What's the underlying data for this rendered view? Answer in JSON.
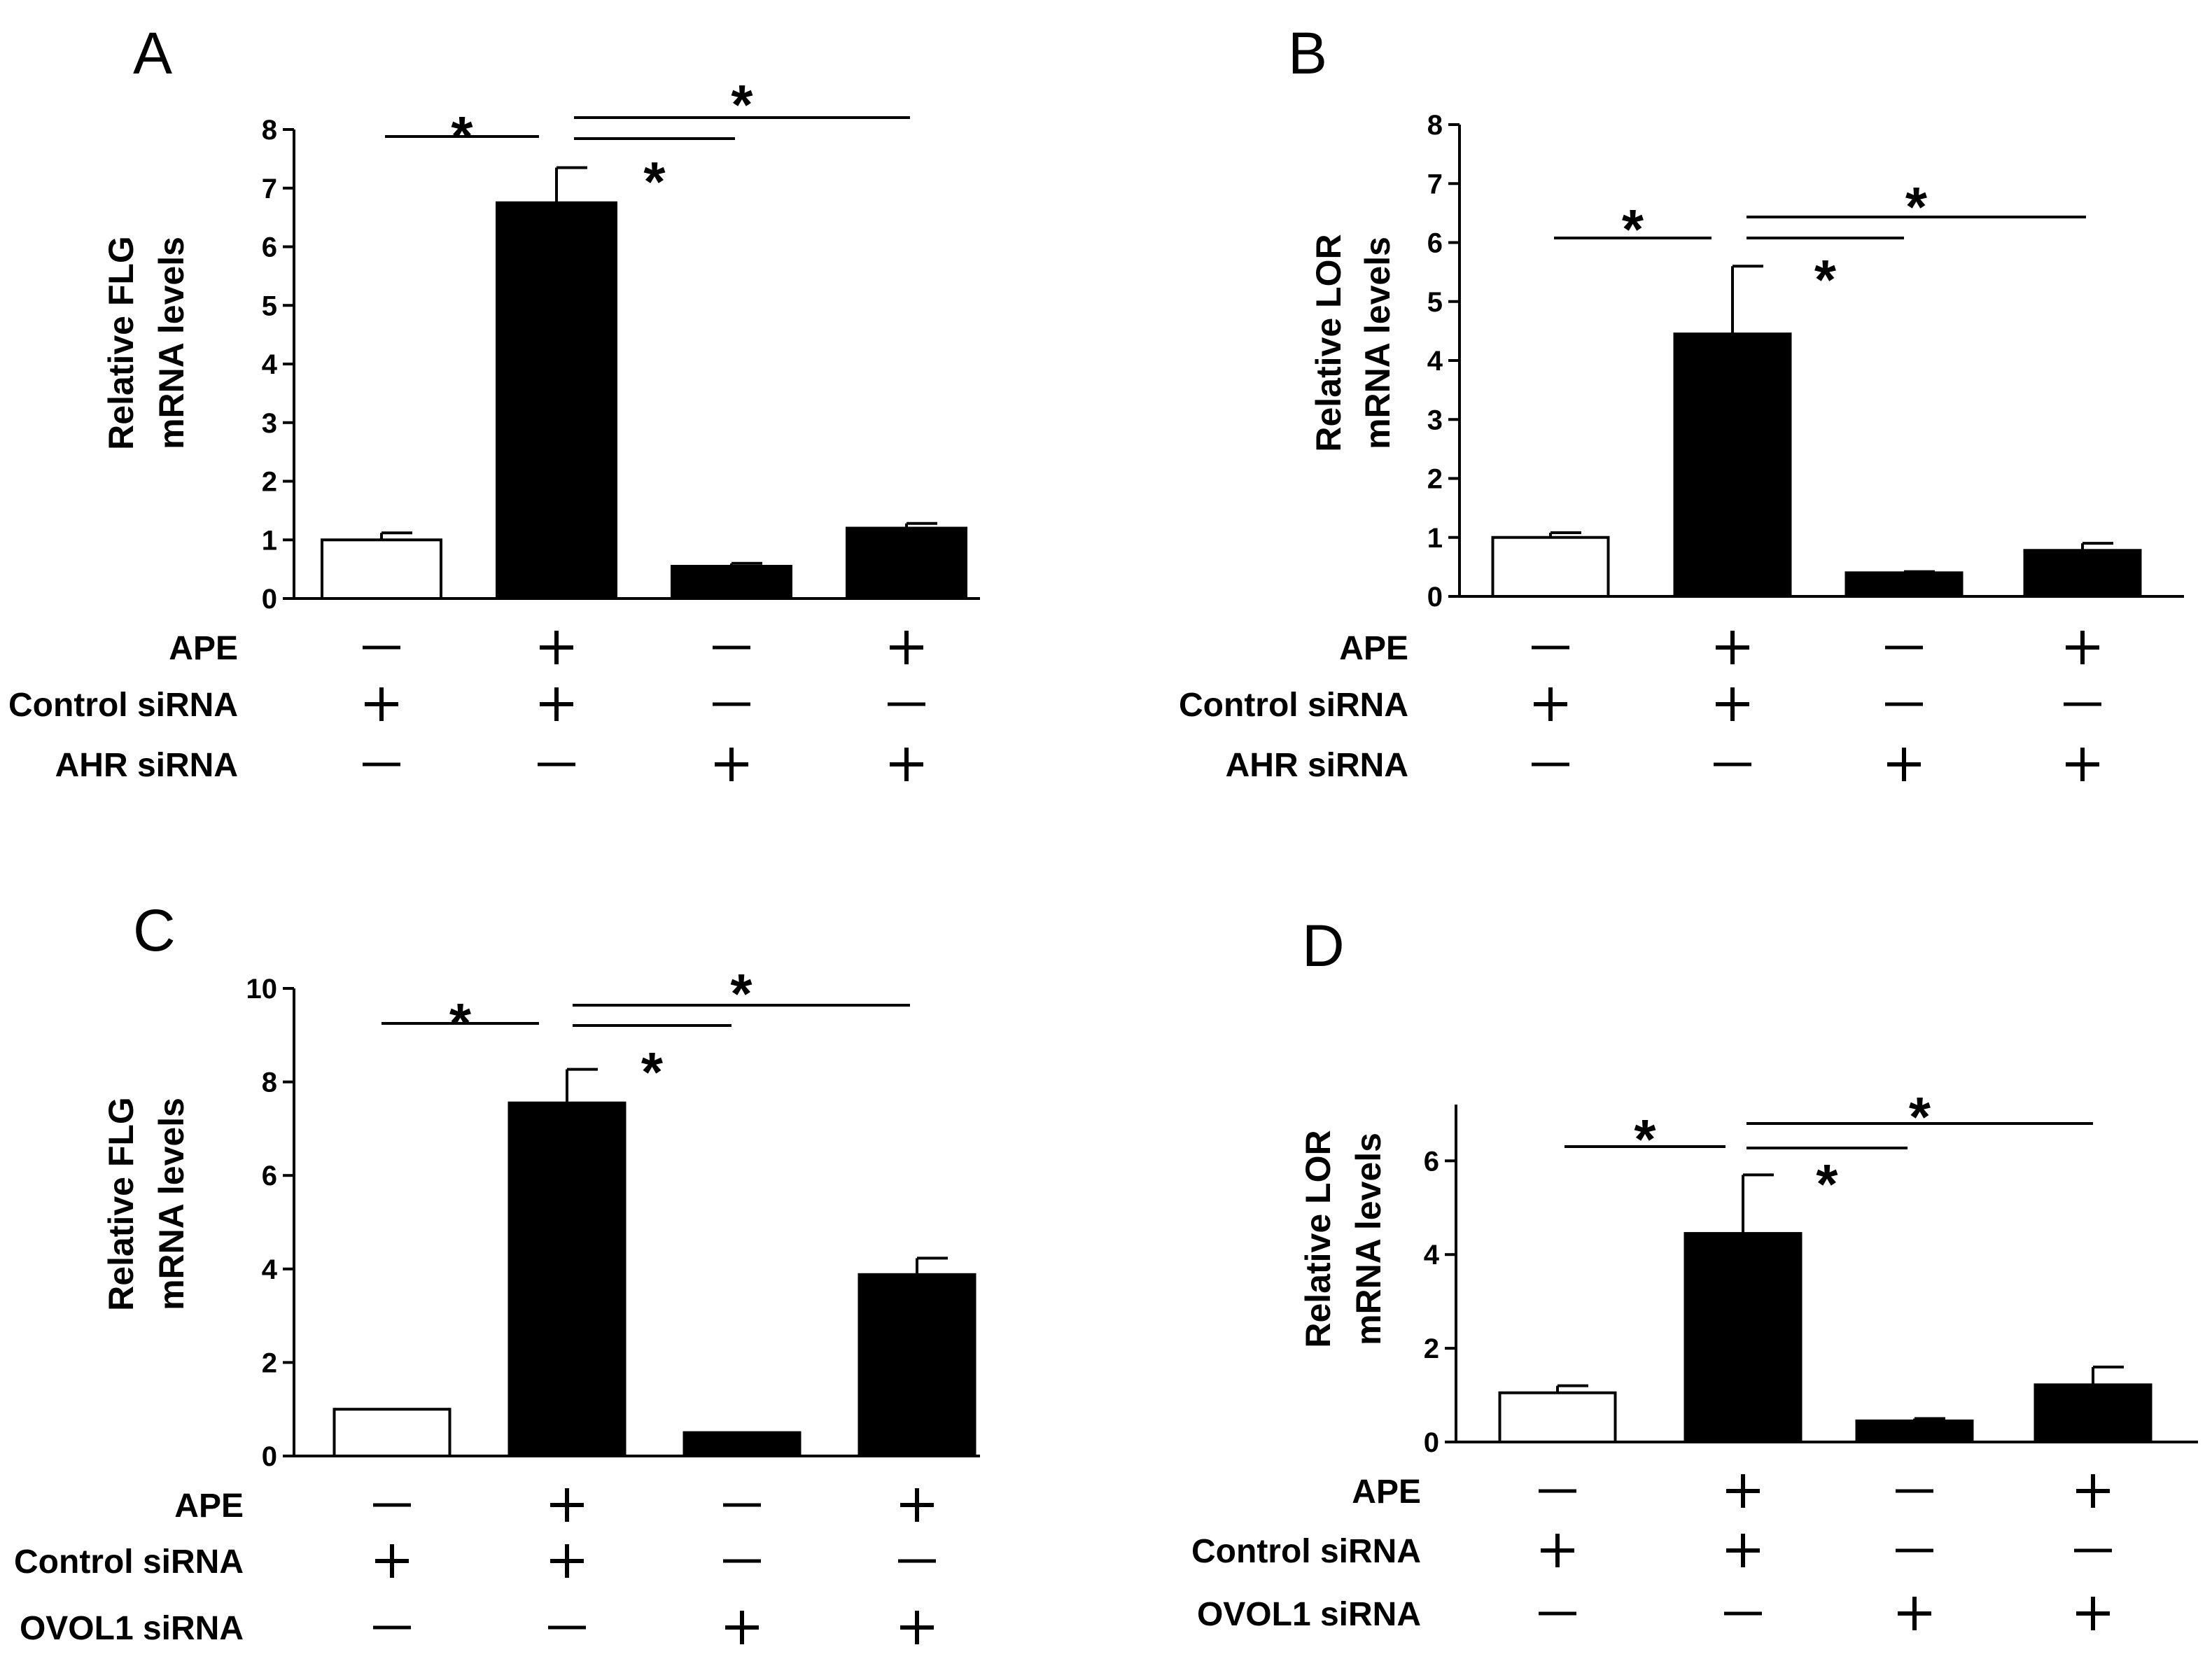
{
  "chart_data": [
    {
      "type": "bar",
      "panel": "A",
      "ylabel_lines": [
        "Relative FLG",
        "mRNA levels"
      ],
      "ylim": [
        0,
        8
      ],
      "yticks": [
        "0",
        "1",
        "2",
        "3",
        "4",
        "5",
        "6",
        "7",
        "8"
      ],
      "fills": [
        "#ffffff",
        "#000000",
        "#000000",
        "#000000"
      ],
      "values": [
        1.0,
        6.75,
        0.55,
        1.2
      ],
      "errors": [
        0.12,
        0.6,
        0.05,
        0.08
      ],
      "conditions": [
        {
          "label": "APE",
          "marks": [
            "—",
            "+",
            "—",
            "+"
          ]
        },
        {
          "label": "Control siRNA",
          "marks": [
            "+",
            "+",
            "—",
            "—"
          ]
        },
        {
          "label": "AHR siRNA",
          "marks": [
            "—",
            "—",
            "+",
            "+"
          ]
        }
      ],
      "significance": [
        {
          "from": 0,
          "to": 1,
          "label": "*"
        },
        {
          "from": 1,
          "to": 2,
          "label": "*"
        },
        {
          "from": 1,
          "to": 3,
          "label": "*"
        }
      ]
    },
    {
      "type": "bar",
      "panel": "B",
      "ylabel_lines": [
        "Relative LOR",
        "mRNA levels"
      ],
      "ylim": [
        0,
        8
      ],
      "yticks": [
        "0",
        "1",
        "2",
        "3",
        "4",
        "5",
        "6",
        "7",
        "8"
      ],
      "fills": [
        "#ffffff",
        "#000000",
        "#000000",
        "#000000"
      ],
      "values": [
        1.0,
        4.45,
        0.4,
        0.78
      ],
      "errors": [
        0.08,
        1.15,
        0.02,
        0.12
      ],
      "conditions": [
        {
          "label": "APE",
          "marks": [
            "—",
            "+",
            "—",
            "+"
          ]
        },
        {
          "label": "Control siRNA",
          "marks": [
            "+",
            "+",
            "—",
            "—"
          ]
        },
        {
          "label": "AHR siRNA",
          "marks": [
            "—",
            "—",
            "+",
            "+"
          ]
        }
      ],
      "significance": [
        {
          "from": 0,
          "to": 1,
          "label": "*"
        },
        {
          "from": 1,
          "to": 2,
          "label": "*"
        },
        {
          "from": 1,
          "to": 3,
          "label": "*"
        }
      ]
    },
    {
      "type": "bar",
      "panel": "C",
      "ylabel_lines": [
        "Relative FLG",
        "mRNA levels"
      ],
      "ylim": [
        0,
        10
      ],
      "yticks": [
        "0",
        "2",
        "4",
        "6",
        "8",
        "10"
      ],
      "fills": [
        "#ffffff",
        "#000000",
        "#000000",
        "#000000"
      ],
      "values": [
        1.0,
        7.55,
        0.5,
        3.88
      ],
      "errors": [
        0,
        0.72,
        0,
        0.35
      ],
      "conditions": [
        {
          "label": "APE",
          "marks": [
            "—",
            "+",
            "—",
            "+"
          ]
        },
        {
          "label": "Control siRNA",
          "marks": [
            "+",
            "+",
            "—",
            "—"
          ]
        },
        {
          "label": "OVOL1 siRNA",
          "marks": [
            "—",
            "—",
            "+",
            "+"
          ]
        }
      ],
      "significance": [
        {
          "from": 0,
          "to": 1,
          "label": "*"
        },
        {
          "from": 1,
          "to": 2,
          "label": "*"
        },
        {
          "from": 1,
          "to": 3,
          "label": "*"
        }
      ]
    },
    {
      "type": "bar",
      "panel": "D",
      "ylabel_lines": [
        "Relative LOR",
        "mRNA levels"
      ],
      "ylim": [
        0,
        7.2
      ],
      "yticks": [
        "0",
        "2",
        "4",
        "6"
      ],
      "fills": [
        "#ffffff",
        "#000000",
        "#000000",
        "#000000"
      ],
      "values": [
        1.05,
        4.45,
        0.45,
        1.22
      ],
      "errors": [
        0.15,
        1.25,
        0.05,
        0.38
      ],
      "conditions": [
        {
          "label": "APE",
          "marks": [
            "—",
            "+",
            "—",
            "+"
          ]
        },
        {
          "label": "Control siRNA",
          "marks": [
            "+",
            "+",
            "—",
            "—"
          ]
        },
        {
          "label": "OVOL1 siRNA",
          "marks": [
            "—",
            "—",
            "+",
            "+"
          ]
        }
      ],
      "significance": [
        {
          "from": 0,
          "to": 1,
          "label": "*"
        },
        {
          "from": 1,
          "to": 2,
          "label": "*"
        },
        {
          "from": 1,
          "to": 3,
          "label": "*"
        }
      ]
    }
  ]
}
